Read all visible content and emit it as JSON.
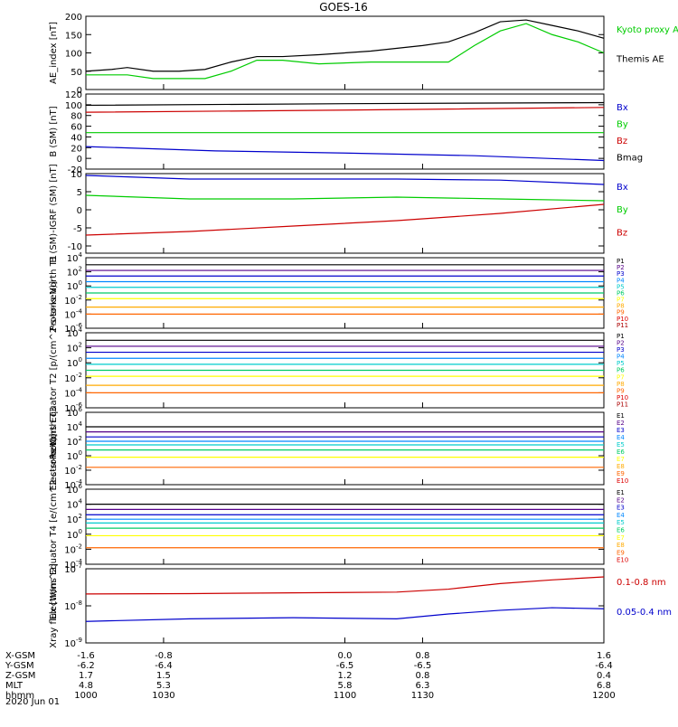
{
  "title": "GOES-16",
  "x_range": [
    1000,
    1200
  ],
  "x_ticks": [
    "1000",
    "1030",
    "1100",
    "1130",
    "1200"
  ],
  "ephemeris": {
    "labels": [
      "X-GSM",
      "Y-GSM",
      "Z-GSM",
      "MLT",
      "hhmm",
      "2020 Jun 01"
    ],
    "columns": [
      [
        "-1.6",
        "-6.2",
        "1.7",
        "4.8",
        "1000"
      ],
      [
        "-0.8",
        "-6.4",
        "1.5",
        "5.3",
        "1030"
      ],
      [
        "0.0",
        "-6.5",
        "1.2",
        "5.8",
        "1100"
      ],
      [
        "0.8",
        "-6.5",
        "0.8",
        "6.3",
        "1130"
      ],
      [
        "1.6",
        "-6.4",
        "0.4",
        "6.8",
        "1200"
      ]
    ]
  },
  "colors": {
    "black": "#000000",
    "green": "#00cc00",
    "blue": "#0000cc",
    "red": "#cc0000",
    "p": [
      "#000000",
      "#550088",
      "#0000cc",
      "#0088ff",
      "#00cccc",
      "#00cc66",
      "#ffff00",
      "#ffaa00",
      "#ff6600",
      "#dd0000",
      "#aa0000"
    ],
    "e": [
      "#000000",
      "#550088",
      "#0000cc",
      "#0088ff",
      "#00cccc",
      "#00cc66",
      "#ffff00",
      "#ffaa00",
      "#ff6600",
      "#dd0000"
    ]
  },
  "chart_data": [
    {
      "type": "line",
      "ylabel": "AE_index [nT]",
      "ylim": [
        0,
        200
      ],
      "yticks": [
        "0",
        "50",
        "100",
        "150",
        "200"
      ],
      "legend": [
        "Kyoto proxy AE",
        "Themis AE"
      ],
      "series": [
        {
          "name": "Kyoto proxy AE",
          "color": "green",
          "x": [
            1000,
            1010,
            1016,
            1026,
            1036,
            1046,
            1056,
            1066,
            1076,
            1090,
            1110,
            1130,
            1140,
            1150,
            1160,
            1170,
            1180,
            1190,
            1200
          ],
          "y": [
            40,
            40,
            40,
            30,
            30,
            30,
            50,
            80,
            80,
            70,
            75,
            75,
            75,
            120,
            160,
            180,
            150,
            130,
            100
          ]
        },
        {
          "name": "Themis AE",
          "color": "black",
          "x": [
            1000,
            1010,
            1016,
            1026,
            1036,
            1046,
            1056,
            1066,
            1076,
            1090,
            1110,
            1130,
            1140,
            1150,
            1160,
            1170,
            1180,
            1190,
            1200
          ],
          "y": [
            50,
            55,
            60,
            50,
            50,
            55,
            75,
            90,
            90,
            95,
            105,
            120,
            130,
            155,
            185,
            190,
            175,
            160,
            140
          ]
        }
      ]
    },
    {
      "type": "line",
      "ylabel": "B (SM) [nT]",
      "ylim": [
        -20,
        120
      ],
      "yticks": [
        "-20",
        "0",
        "20",
        "40",
        "60",
        "80",
        "100",
        "120"
      ],
      "legend": [
        "Bx",
        "By",
        "Bz",
        "Bmag"
      ],
      "series": [
        {
          "name": "Bmag",
          "color": "black",
          "x": [
            1000,
            1100,
            1200
          ],
          "y": [
            99,
            102,
            104
          ]
        },
        {
          "name": "Bz",
          "color": "red",
          "x": [
            1000,
            1100,
            1200
          ],
          "y": [
            86,
            90,
            95
          ]
        },
        {
          "name": "By",
          "color": "green",
          "x": [
            1000,
            1100,
            1200
          ],
          "y": [
            48,
            48,
            48
          ]
        },
        {
          "name": "Bx",
          "color": "blue",
          "x": [
            1000,
            1050,
            1100,
            1150,
            1200
          ],
          "y": [
            22,
            14,
            10,
            5,
            -4
          ]
        }
      ]
    },
    {
      "type": "line",
      "ylabel": "B (SM)-IGRF (SM) [nT]",
      "ylim": [
        -12,
        10
      ],
      "yticks": [
        "-10",
        "-5",
        "0",
        "5",
        "10"
      ],
      "legend": [
        "Bx",
        "By",
        "Bz"
      ],
      "series": [
        {
          "name": "Bx",
          "color": "blue",
          "x": [
            1000,
            1040,
            1080,
            1120,
            1160,
            1200
          ],
          "y": [
            9.5,
            8.5,
            8.5,
            8.5,
            8.2,
            7
          ]
        },
        {
          "name": "By",
          "color": "green",
          "x": [
            1000,
            1040,
            1080,
            1120,
            1160,
            1200
          ],
          "y": [
            4,
            3,
            3,
            3.5,
            3,
            2.5
          ]
        },
        {
          "name": "Bz",
          "color": "red",
          "x": [
            1000,
            1040,
            1080,
            1120,
            1160,
            1200
          ],
          "y": [
            -7,
            -6,
            -4.5,
            -3,
            -1,
            1.5
          ]
        }
      ]
    },
    {
      "type": "line",
      "ylabel": "Protons North T1",
      "ylog": [
        -6,
        4
      ],
      "yticks": [
        "10^-6",
        "10^-4",
        "10^-2",
        "10^0",
        "10^2",
        "10^4"
      ],
      "legend": [
        "P1",
        "P2",
        "P3",
        "P4",
        "P5",
        "P6",
        "P7",
        "P8",
        "P9",
        "P10",
        "P11"
      ],
      "levels": [
        3.0,
        2.2,
        1.4,
        0.6,
        -0.2,
        -1.0,
        -1.8,
        -3.0,
        -4.0,
        null,
        null
      ]
    },
    {
      "type": "line",
      "ylabel": "Protons Equator T2 [p/(cm^2-s-sr-keV)]",
      "ylog": [
        -6,
        4
      ],
      "yticks": [
        "10^-6",
        "10^-4",
        "10^-2",
        "10^0",
        "10^2",
        "10^4"
      ],
      "legend": [
        "P1",
        "P2",
        "P3",
        "P4",
        "P5",
        "P6",
        "P7",
        "P8",
        "P9",
        "P10",
        "P11"
      ],
      "levels": [
        3.0,
        2.2,
        1.4,
        0.6,
        -0.2,
        -1.0,
        -1.8,
        -3.0,
        -4.0,
        null,
        null
      ]
    },
    {
      "type": "line",
      "ylabel": "Electrons North T3",
      "ylog": [
        -4,
        6
      ],
      "yticks": [
        "10^-4",
        "10^-2",
        "10^0",
        "10^2",
        "10^4",
        "10^6"
      ],
      "legend": [
        "E1",
        "E2",
        "E3",
        "E4",
        "E5",
        "E6",
        "E7",
        "E8",
        "E9",
        "E10"
      ],
      "levels": [
        4.0,
        3.3,
        2.6,
        2.0,
        1.5,
        0.8,
        -0.2,
        null,
        -1.6,
        null
      ]
    },
    {
      "type": "line",
      "ylabel": "Electrons Equator T4 [e/(cm^2-s-sr-keV)]",
      "ylog": [
        -4,
        6
      ],
      "yticks": [
        "10^-4",
        "10^-2",
        "10^0",
        "10^2",
        "10^4",
        "10^6"
      ],
      "legend": [
        "E1",
        "E2",
        "E3",
        "E4",
        "E5",
        "E6",
        "E7",
        "E8",
        "E9",
        "E10"
      ],
      "levels": [
        4.0,
        3.3,
        2.6,
        2.0,
        1.5,
        0.8,
        -0.2,
        null,
        -1.8,
        null
      ]
    },
    {
      "type": "line",
      "ylabel": "Xray flux [W/m^2]",
      "ylog": [
        -9,
        -7
      ],
      "yticks": [
        "10^-9",
        "10^-8",
        "10^-7"
      ],
      "legend": [
        "0.1-0.8 nm",
        "0.05-0.4 nm"
      ],
      "series": [
        {
          "name": "0.1-0.8 nm",
          "color": "red",
          "x": [
            1000,
            1040,
            1080,
            1120,
            1140,
            1160,
            1180,
            1200
          ],
          "y": [
            -7.68,
            -7.67,
            -7.65,
            -7.63,
            -7.55,
            -7.4,
            -7.3,
            -7.22
          ]
        },
        {
          "name": "0.05-0.4 nm",
          "color": "blue",
          "x": [
            1000,
            1040,
            1080,
            1120,
            1140,
            1160,
            1180,
            1200
          ],
          "y": [
            -8.42,
            -8.35,
            -8.32,
            -8.35,
            -8.22,
            -8.12,
            -8.05,
            -8.08
          ]
        }
      ]
    }
  ]
}
